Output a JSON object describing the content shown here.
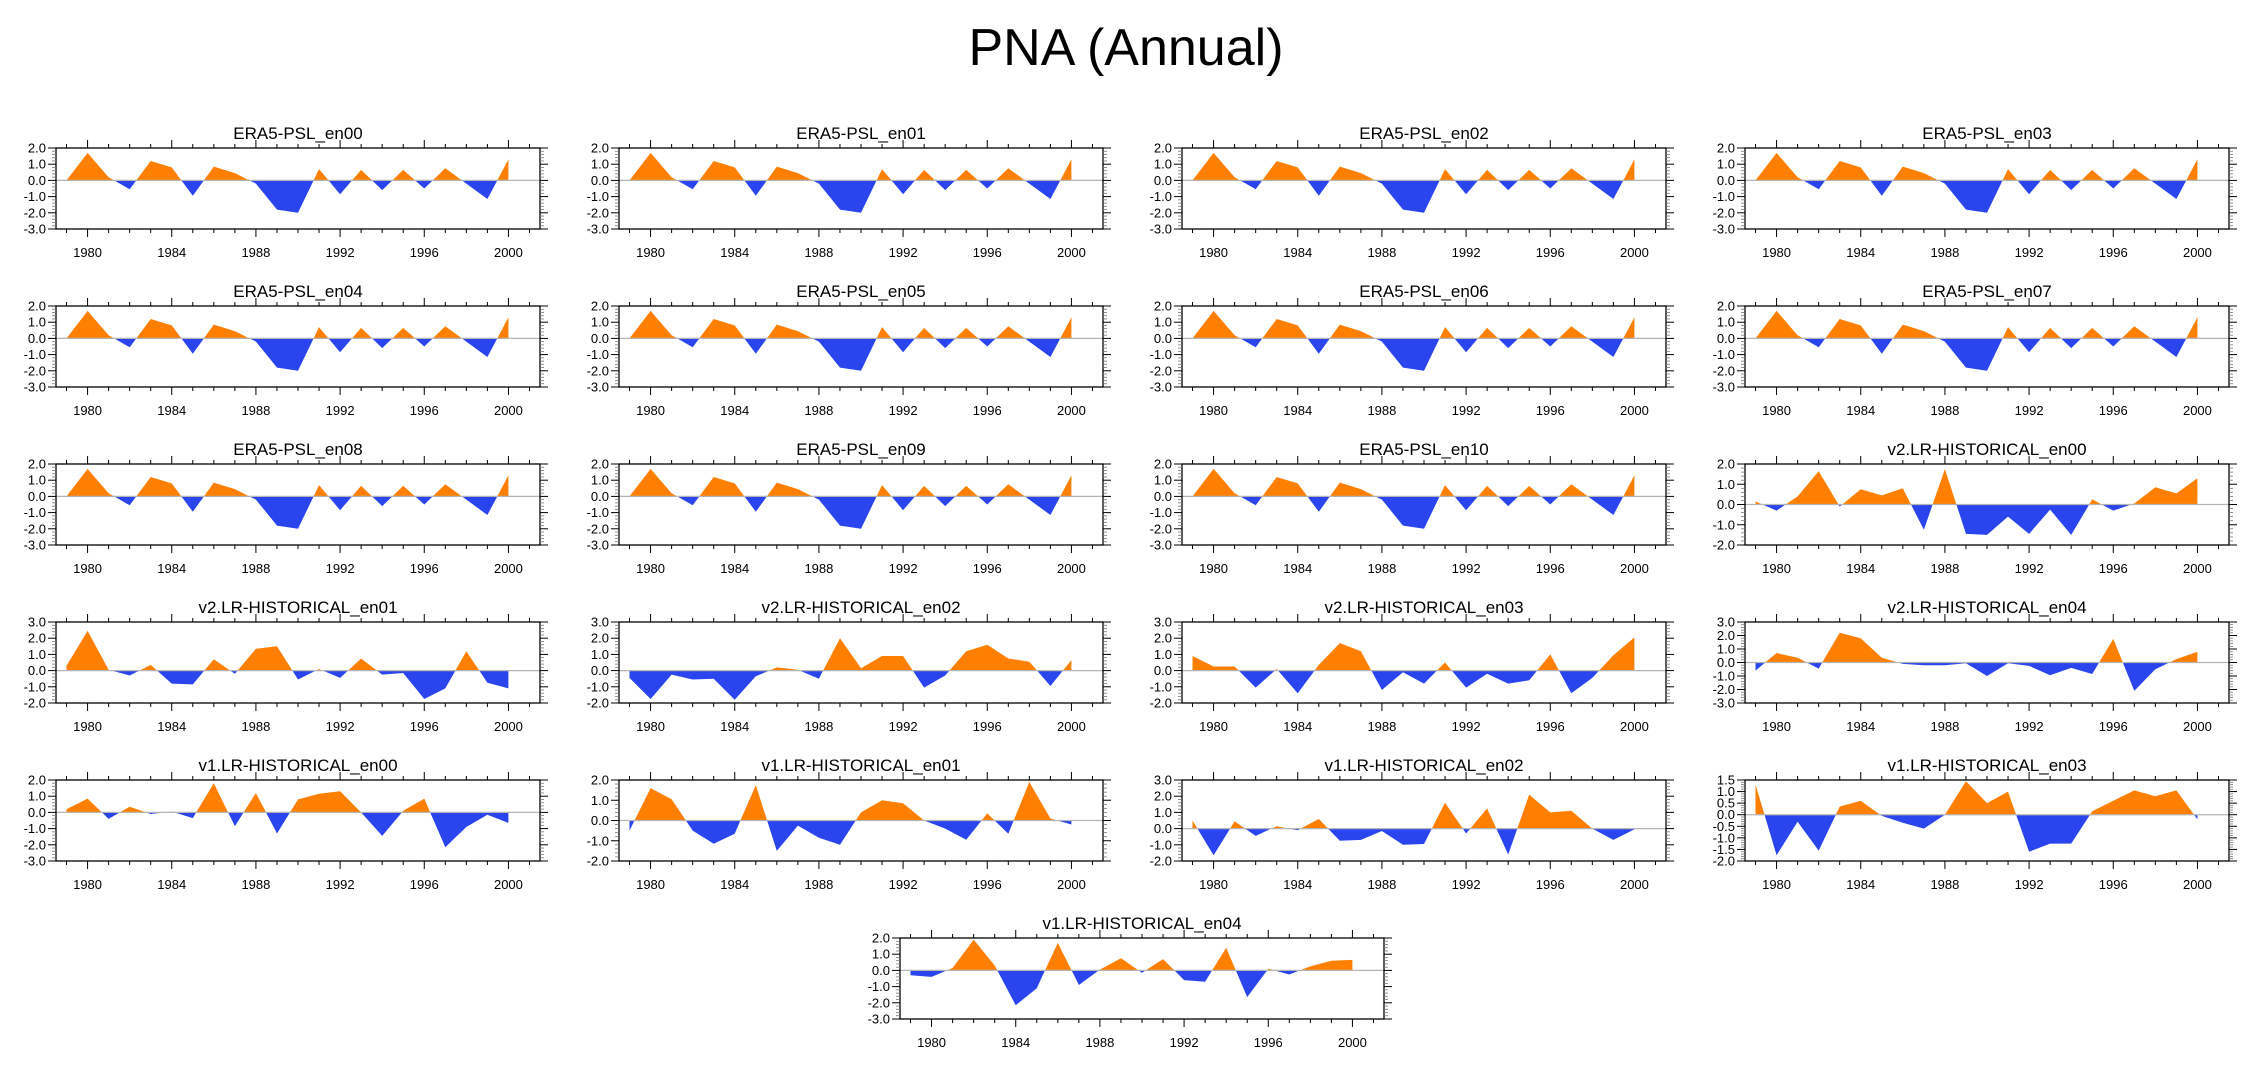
{
  "figure": {
    "title": "PNA (Annual)"
  },
  "chart_data": {
    "type": "area",
    "title": "PNA (Annual)",
    "xlabel": "",
    "ylabel": "",
    "x": [
      1979,
      1980,
      1981,
      1982,
      1983,
      1984,
      1985,
      1986,
      1987,
      1988,
      1989,
      1990,
      1991,
      1992,
      1993,
      1994,
      1995,
      1996,
      1997,
      1998,
      1999,
      2000
    ],
    "xlim": [
      1978.5,
      2001.5
    ],
    "xticks": [
      1980,
      1984,
      1988,
      1992,
      1996,
      2000
    ],
    "xtick_labels": [
      "1980",
      "1984",
      "1988",
      "1992",
      "1996",
      "2000"
    ],
    "colors": {
      "positive": "#FF8000",
      "negative": "#2A45EE",
      "zero_line": "#B4B4B4"
    },
    "grid": false,
    "legend": "none",
    "panels": [
      {
        "title": "ERA5-PSL_en00",
        "ylim": [
          -3.0,
          2.0
        ],
        "yticks": [
          "2.0",
          "1.0",
          "0.0",
          "-1.0",
          "-2.0",
          "-3.0"
        ],
        "values": [
          0.0,
          1.7,
          0.2,
          -0.55,
          1.2,
          0.8,
          -0.95,
          0.85,
          0.45,
          -0.2,
          -1.8,
          -2.0,
          0.7,
          -0.85,
          0.65,
          -0.6,
          0.65,
          -0.5,
          0.75,
          -0.2,
          -1.15,
          1.3
        ]
      },
      {
        "title": "ERA5-PSL_en01",
        "ylim": [
          -3.0,
          2.0
        ],
        "yticks": [
          "2.0",
          "1.0",
          "0.0",
          "-1.0",
          "-2.0",
          "-3.0"
        ],
        "values": [
          0.0,
          1.7,
          0.2,
          -0.55,
          1.2,
          0.8,
          -0.95,
          0.85,
          0.45,
          -0.2,
          -1.8,
          -2.0,
          0.7,
          -0.85,
          0.65,
          -0.6,
          0.65,
          -0.5,
          0.75,
          -0.2,
          -1.15,
          1.3
        ]
      },
      {
        "title": "ERA5-PSL_en02",
        "ylim": [
          -3.0,
          2.0
        ],
        "yticks": [
          "2.0",
          "1.0",
          "0.0",
          "-1.0",
          "-2.0",
          "-3.0"
        ],
        "values": [
          0.0,
          1.7,
          0.2,
          -0.55,
          1.2,
          0.8,
          -0.95,
          0.85,
          0.45,
          -0.2,
          -1.8,
          -2.0,
          0.7,
          -0.85,
          0.65,
          -0.6,
          0.65,
          -0.5,
          0.75,
          -0.2,
          -1.15,
          1.3
        ]
      },
      {
        "title": "ERA5-PSL_en03",
        "ylim": [
          -3.0,
          2.0
        ],
        "yticks": [
          "2.0",
          "1.0",
          "0.0",
          "-1.0",
          "-2.0",
          "-3.0"
        ],
        "values": [
          0.0,
          1.7,
          0.2,
          -0.55,
          1.2,
          0.8,
          -0.95,
          0.85,
          0.45,
          -0.2,
          -1.8,
          -2.0,
          0.7,
          -0.85,
          0.65,
          -0.6,
          0.65,
          -0.5,
          0.75,
          -0.2,
          -1.15,
          1.3
        ]
      },
      {
        "title": "ERA5-PSL_en04",
        "ylim": [
          -3.0,
          2.0
        ],
        "yticks": [
          "2.0",
          "1.0",
          "0.0",
          "-1.0",
          "-2.0",
          "-3.0"
        ],
        "values": [
          0.0,
          1.7,
          0.2,
          -0.55,
          1.2,
          0.8,
          -0.95,
          0.85,
          0.45,
          -0.2,
          -1.8,
          -2.0,
          0.7,
          -0.85,
          0.65,
          -0.6,
          0.65,
          -0.5,
          0.75,
          -0.2,
          -1.15,
          1.3
        ]
      },
      {
        "title": "ERA5-PSL_en05",
        "ylim": [
          -3.0,
          2.0
        ],
        "yticks": [
          "2.0",
          "1.0",
          "0.0",
          "-1.0",
          "-2.0",
          "-3.0"
        ],
        "values": [
          0.0,
          1.7,
          0.2,
          -0.55,
          1.2,
          0.8,
          -0.95,
          0.85,
          0.45,
          -0.2,
          -1.8,
          -2.0,
          0.7,
          -0.85,
          0.65,
          -0.6,
          0.65,
          -0.5,
          0.75,
          -0.2,
          -1.15,
          1.3
        ]
      },
      {
        "title": "ERA5-PSL_en06",
        "ylim": [
          -3.0,
          2.0
        ],
        "yticks": [
          "2.0",
          "1.0",
          "0.0",
          "-1.0",
          "-2.0",
          "-3.0"
        ],
        "values": [
          0.0,
          1.7,
          0.2,
          -0.55,
          1.2,
          0.8,
          -0.95,
          0.85,
          0.45,
          -0.2,
          -1.8,
          -2.0,
          0.7,
          -0.85,
          0.65,
          -0.6,
          0.65,
          -0.5,
          0.75,
          -0.2,
          -1.15,
          1.3
        ]
      },
      {
        "title": "ERA5-PSL_en07",
        "ylim": [
          -3.0,
          2.0
        ],
        "yticks": [
          "2.0",
          "1.0",
          "0.0",
          "-1.0",
          "-2.0",
          "-3.0"
        ],
        "values": [
          0.0,
          1.7,
          0.2,
          -0.55,
          1.2,
          0.8,
          -0.95,
          0.85,
          0.45,
          -0.2,
          -1.8,
          -2.0,
          0.7,
          -0.85,
          0.65,
          -0.6,
          0.65,
          -0.5,
          0.75,
          -0.2,
          -1.15,
          1.3
        ]
      },
      {
        "title": "ERA5-PSL_en08",
        "ylim": [
          -3.0,
          2.0
        ],
        "yticks": [
          "2.0",
          "1.0",
          "0.0",
          "-1.0",
          "-2.0",
          "-3.0"
        ],
        "values": [
          0.0,
          1.7,
          0.2,
          -0.55,
          1.2,
          0.8,
          -0.95,
          0.85,
          0.45,
          -0.2,
          -1.8,
          -2.0,
          0.7,
          -0.85,
          0.65,
          -0.6,
          0.65,
          -0.5,
          0.75,
          -0.2,
          -1.15,
          1.3
        ]
      },
      {
        "title": "ERA5-PSL_en09",
        "ylim": [
          -3.0,
          2.0
        ],
        "yticks": [
          "2.0",
          "1.0",
          "0.0",
          "-1.0",
          "-2.0",
          "-3.0"
        ],
        "values": [
          0.0,
          1.7,
          0.2,
          -0.55,
          1.2,
          0.8,
          -0.95,
          0.85,
          0.45,
          -0.2,
          -1.8,
          -2.0,
          0.7,
          -0.85,
          0.65,
          -0.6,
          0.65,
          -0.5,
          0.75,
          -0.2,
          -1.15,
          1.3
        ]
      },
      {
        "title": "ERA5-PSL_en10",
        "ylim": [
          -3.0,
          2.0
        ],
        "yticks": [
          "2.0",
          "1.0",
          "0.0",
          "-1.0",
          "-2.0",
          "-3.0"
        ],
        "values": [
          0.0,
          1.7,
          0.2,
          -0.55,
          1.2,
          0.8,
          -0.95,
          0.85,
          0.45,
          -0.2,
          -1.8,
          -2.0,
          0.7,
          -0.85,
          0.65,
          -0.6,
          0.65,
          -0.5,
          0.75,
          -0.2,
          -1.15,
          1.3
        ]
      },
      {
        "title": "v2.LR-HISTORICAL_en00",
        "ylim": [
          -2.0,
          2.0
        ],
        "yticks": [
          "2.0",
          "1.0",
          "0.0",
          "-1.0",
          "-2.0"
        ],
        "values": [
          0.15,
          -0.3,
          0.4,
          1.65,
          -0.1,
          0.75,
          0.45,
          0.8,
          -1.25,
          1.75,
          -1.45,
          -1.5,
          -0.6,
          -1.45,
          -0.25,
          -1.5,
          0.25,
          -0.3,
          0.05,
          0.85,
          0.55,
          1.3
        ]
      },
      {
        "title": "v2.LR-HISTORICAL_en01",
        "ylim": [
          -2.0,
          3.0
        ],
        "yticks": [
          "3.0",
          "2.0",
          "1.0",
          "0.0",
          "-1.0",
          "-2.0"
        ],
        "values": [
          0.3,
          2.45,
          0.05,
          -0.3,
          0.35,
          -0.8,
          -0.85,
          0.7,
          -0.2,
          1.35,
          1.5,
          -0.55,
          0.1,
          -0.45,
          0.75,
          -0.25,
          -0.15,
          -1.75,
          -1.1,
          1.2,
          -0.75,
          -1.1
        ]
      },
      {
        "title": "v2.LR-HISTORICAL_en02",
        "ylim": [
          -2.0,
          3.0
        ],
        "yticks": [
          "3.0",
          "2.0",
          "1.0",
          "0.0",
          "-1.0",
          "-2.0"
        ],
        "values": [
          -0.45,
          -1.75,
          -0.25,
          -0.55,
          -0.5,
          -1.8,
          -0.35,
          0.2,
          0.05,
          -0.5,
          2.0,
          0.15,
          0.9,
          0.9,
          -1.05,
          -0.3,
          1.2,
          1.6,
          0.75,
          0.55,
          -0.95,
          0.65
        ]
      },
      {
        "title": "v2.LR-HISTORICAL_en03",
        "ylim": [
          -2.0,
          3.0
        ],
        "yticks": [
          "3.0",
          "2.0",
          "1.0",
          "0.0",
          "-1.0",
          "-2.0"
        ],
        "values": [
          0.9,
          0.25,
          0.25,
          -1.05,
          0.1,
          -1.4,
          0.35,
          1.7,
          1.2,
          -1.2,
          -0.1,
          -0.8,
          0.5,
          -1.05,
          -0.2,
          -0.8,
          -0.6,
          1.0,
          -1.4,
          -0.45,
          0.95,
          2.05
        ]
      },
      {
        "title": "v2.LR-HISTORICAL_en04",
        "ylim": [
          -3.0,
          3.0
        ],
        "yticks": [
          "3.0",
          "2.0",
          "1.0",
          "0.0",
          "-1.0",
          "-2.0",
          "-3.0"
        ],
        "values": [
          -0.6,
          0.7,
          0.35,
          -0.45,
          2.2,
          1.8,
          0.35,
          -0.1,
          -0.2,
          -0.2,
          -0.05,
          -1.0,
          -0.05,
          -0.25,
          -0.95,
          -0.4,
          -0.85,
          1.75,
          -2.1,
          -0.5,
          0.25,
          0.8
        ]
      },
      {
        "title": "v1.LR-HISTORICAL_en00",
        "ylim": [
          -3.0,
          2.0
        ],
        "yticks": [
          "2.0",
          "1.0",
          "0.0",
          "-1.0",
          "-2.0",
          "-3.0"
        ],
        "values": [
          0.2,
          0.85,
          -0.4,
          0.35,
          -0.1,
          0.05,
          -0.35,
          1.8,
          -0.85,
          1.2,
          -1.3,
          0.8,
          1.15,
          1.3,
          0.0,
          -1.45,
          0.1,
          0.85,
          -2.15,
          -0.9,
          -0.15,
          -0.65
        ]
      },
      {
        "title": "v1.LR-HISTORICAL_en01",
        "ylim": [
          -2.0,
          2.0
        ],
        "yticks": [
          "2.0",
          "1.0",
          "0.0",
          "-1.0",
          "-2.0"
        ],
        "values": [
          -0.5,
          1.6,
          1.05,
          -0.5,
          -1.15,
          -0.65,
          1.75,
          -1.5,
          -0.25,
          -0.85,
          -1.2,
          0.4,
          1.0,
          0.85,
          0.0,
          -0.4,
          -0.95,
          0.35,
          -0.65,
          1.9,
          0.1,
          -0.2
        ]
      },
      {
        "title": "v1.LR-HISTORICAL_en02",
        "ylim": [
          -2.0,
          3.0
        ],
        "yticks": [
          "3.0",
          "2.0",
          "1.0",
          "0.0",
          "-1.0",
          "-2.0"
        ],
        "values": [
          0.5,
          -1.65,
          0.45,
          -0.45,
          0.15,
          -0.1,
          0.6,
          -0.75,
          -0.7,
          -0.15,
          -1.0,
          -0.95,
          1.6,
          -0.3,
          1.25,
          -1.6,
          2.1,
          1.0,
          1.1,
          0.0,
          -0.7,
          -0.05
        ]
      },
      {
        "title": "v1.LR-HISTORICAL_en03",
        "ylim": [
          -2.0,
          1.5
        ],
        "yticks": [
          "1.5",
          "1.0",
          "0.5",
          "0.0",
          "-0.5",
          "-1.0",
          "-1.5",
          "-2.0"
        ],
        "values": [
          1.3,
          -1.75,
          -0.3,
          -1.55,
          0.35,
          0.6,
          -0.05,
          -0.35,
          -0.6,
          0.0,
          1.45,
          0.5,
          1.0,
          -1.6,
          -1.25,
          -1.25,
          0.15,
          0.6,
          1.05,
          0.8,
          1.05,
          -0.2
        ]
      },
      {
        "title": "v1.LR-HISTORICAL_en04",
        "ylim": [
          -3.0,
          2.0
        ],
        "yticks": [
          "2.0",
          "1.0",
          "0.0",
          "-1.0",
          "-2.0",
          "-3.0"
        ],
        "values": [
          -0.3,
          -0.4,
          0.15,
          1.9,
          0.3,
          -2.15,
          -1.1,
          1.7,
          -0.9,
          0.05,
          0.75,
          -0.15,
          0.7,
          -0.6,
          -0.7,
          1.4,
          -1.65,
          0.1,
          -0.25,
          0.25,
          0.6,
          0.65
        ]
      }
    ]
  }
}
